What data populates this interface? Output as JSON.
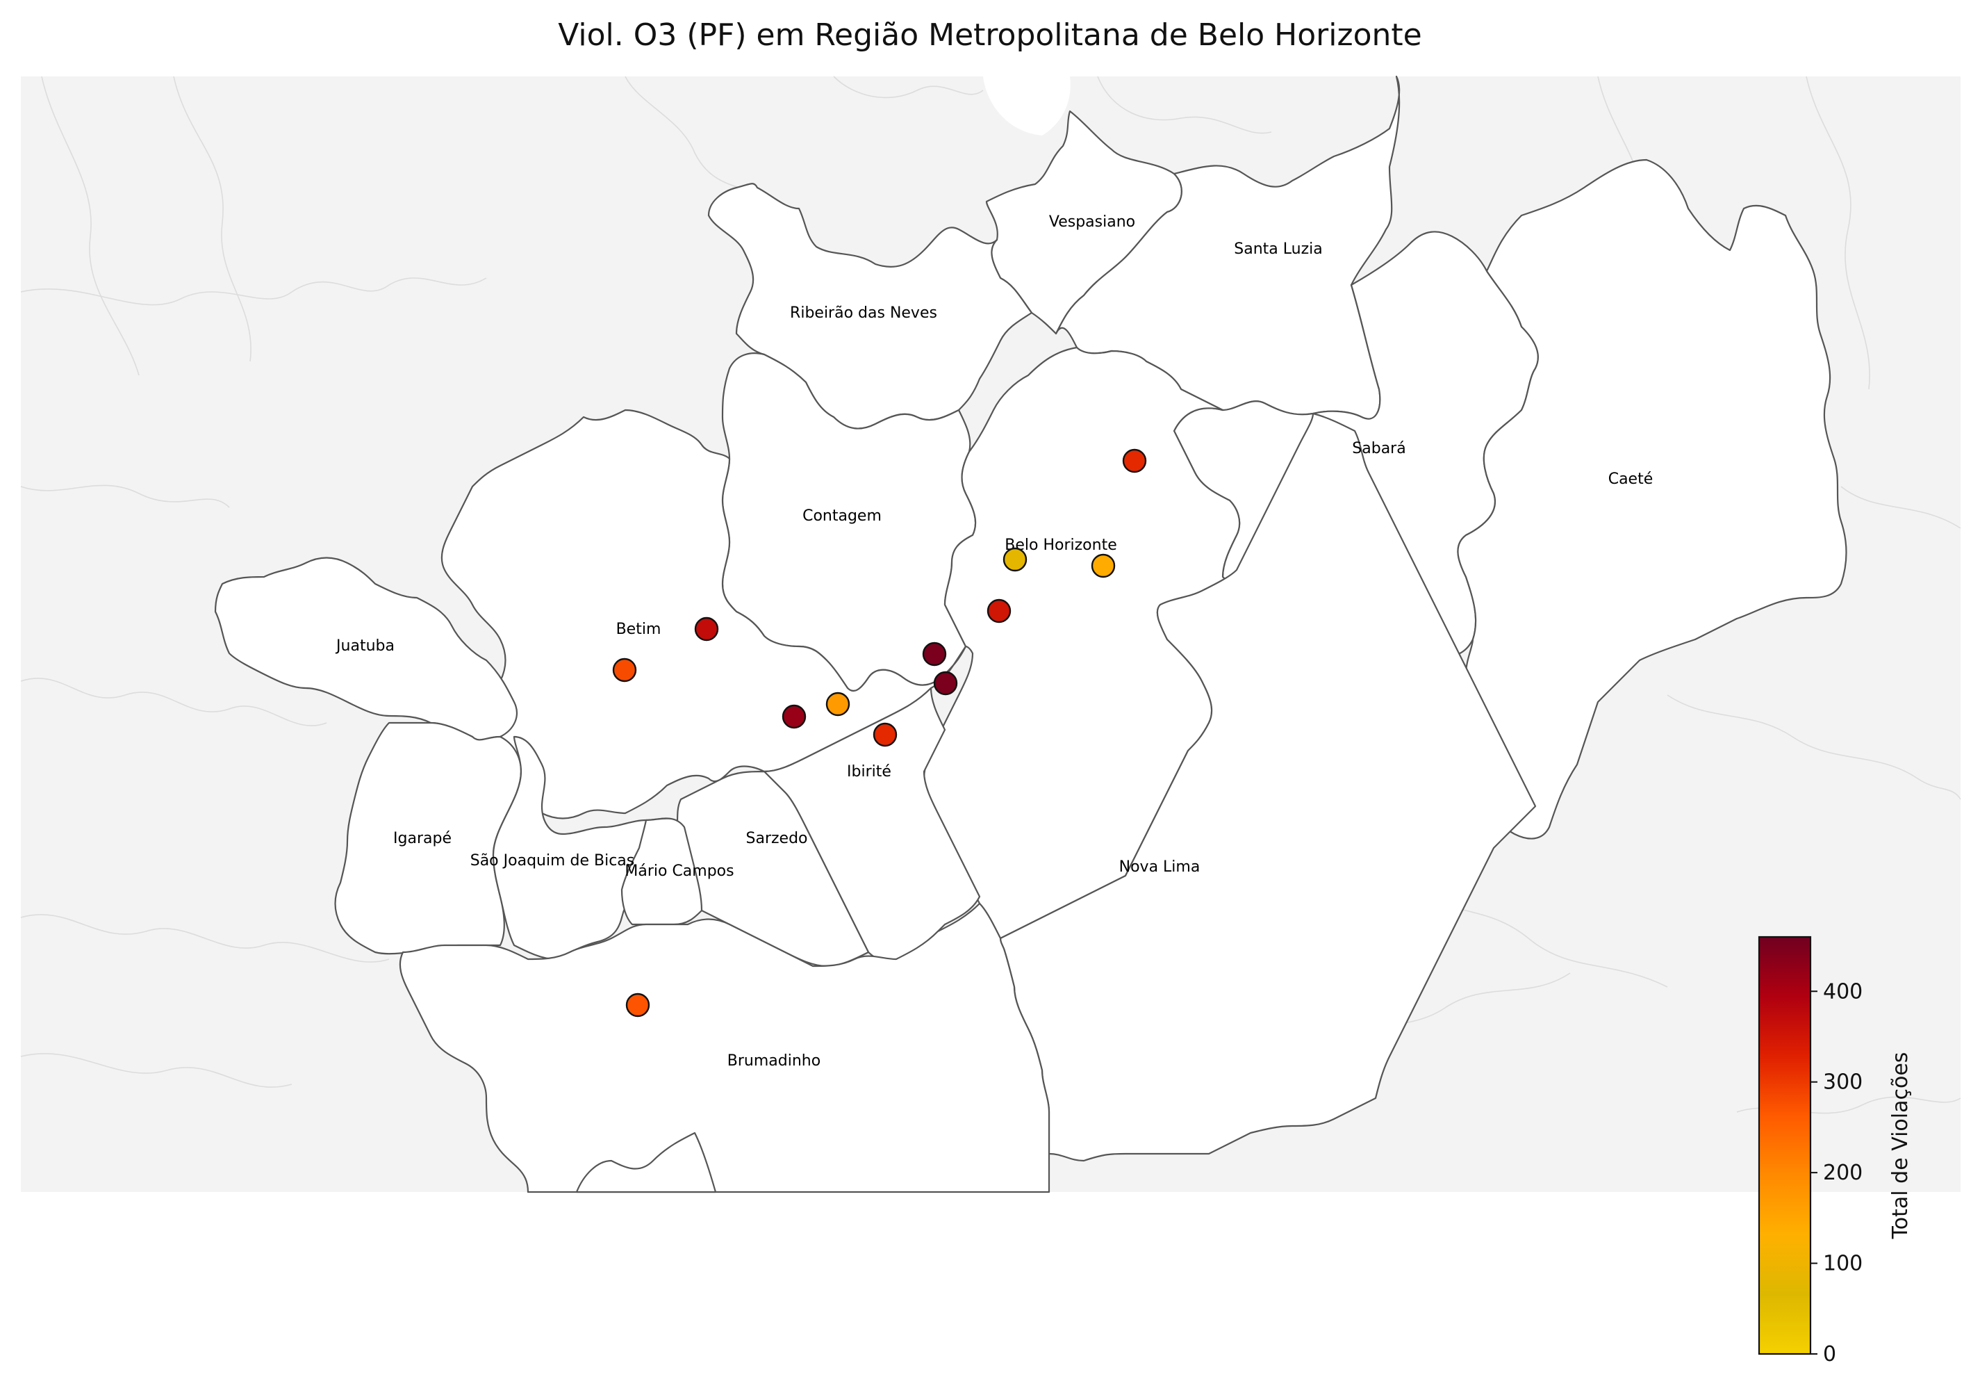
{
  "title": "Viol. O3 (PF) em Região Metropolitana de Belo Horizonte",
  "colorbar": {
    "label": "Total de Violações",
    "min": 0,
    "max": 460,
    "ticks": [
      0,
      100,
      200,
      300,
      400
    ],
    "colormap": [
      "#f5d000",
      "#ddb800",
      "#ffb000",
      "#ff8a00",
      "#ff5a00",
      "#e02000",
      "#b00010",
      "#700020"
    ]
  },
  "municipalities": [
    {
      "id": "vespasiano",
      "name": "Vespasiano"
    },
    {
      "id": "santa-luzia",
      "name": "Santa Luzia"
    },
    {
      "id": "ribeirao-das-neves",
      "name": "Ribeirão das Neves"
    },
    {
      "id": "sabara",
      "name": "Sabará"
    },
    {
      "id": "caete",
      "name": "Caeté"
    },
    {
      "id": "contagem",
      "name": "Contagem"
    },
    {
      "id": "belo-horizonte",
      "name": "Belo Horizonte"
    },
    {
      "id": "betim",
      "name": "Betim"
    },
    {
      "id": "juatuba",
      "name": "Juatuba"
    },
    {
      "id": "ibirite",
      "name": "Ibirité"
    },
    {
      "id": "sarzedo",
      "name": "Sarzedo"
    },
    {
      "id": "igarape",
      "name": "Igarapé"
    },
    {
      "id": "sao-joaquim-de-bicas",
      "name": "São Joaquim de Bicas"
    },
    {
      "id": "mario-campos",
      "name": "Mário Campos"
    },
    {
      "id": "nova-lima",
      "name": "Nova Lima"
    },
    {
      "id": "brumadinho",
      "name": "Brumadinho"
    }
  ],
  "stations": [
    {
      "municipality": "Belo Horizonte",
      "violations": 320
    },
    {
      "municipality": "Belo Horizonte",
      "violations": 80
    },
    {
      "municipality": "Belo Horizonte",
      "violations": 140
    },
    {
      "municipality": "Belo Horizonte",
      "violations": 350
    },
    {
      "municipality": "Contagem",
      "violations": 450
    },
    {
      "municipality": "Belo Horizonte",
      "violations": 450
    },
    {
      "municipality": "Betim",
      "violations": 370
    },
    {
      "municipality": "Betim",
      "violations": 280
    },
    {
      "municipality": "Ibirité",
      "violations": 420
    },
    {
      "municipality": "Ibirité",
      "violations": 170
    },
    {
      "municipality": "Ibirité",
      "violations": 320
    },
    {
      "municipality": "Brumadinho",
      "violations": 270
    }
  ]
}
